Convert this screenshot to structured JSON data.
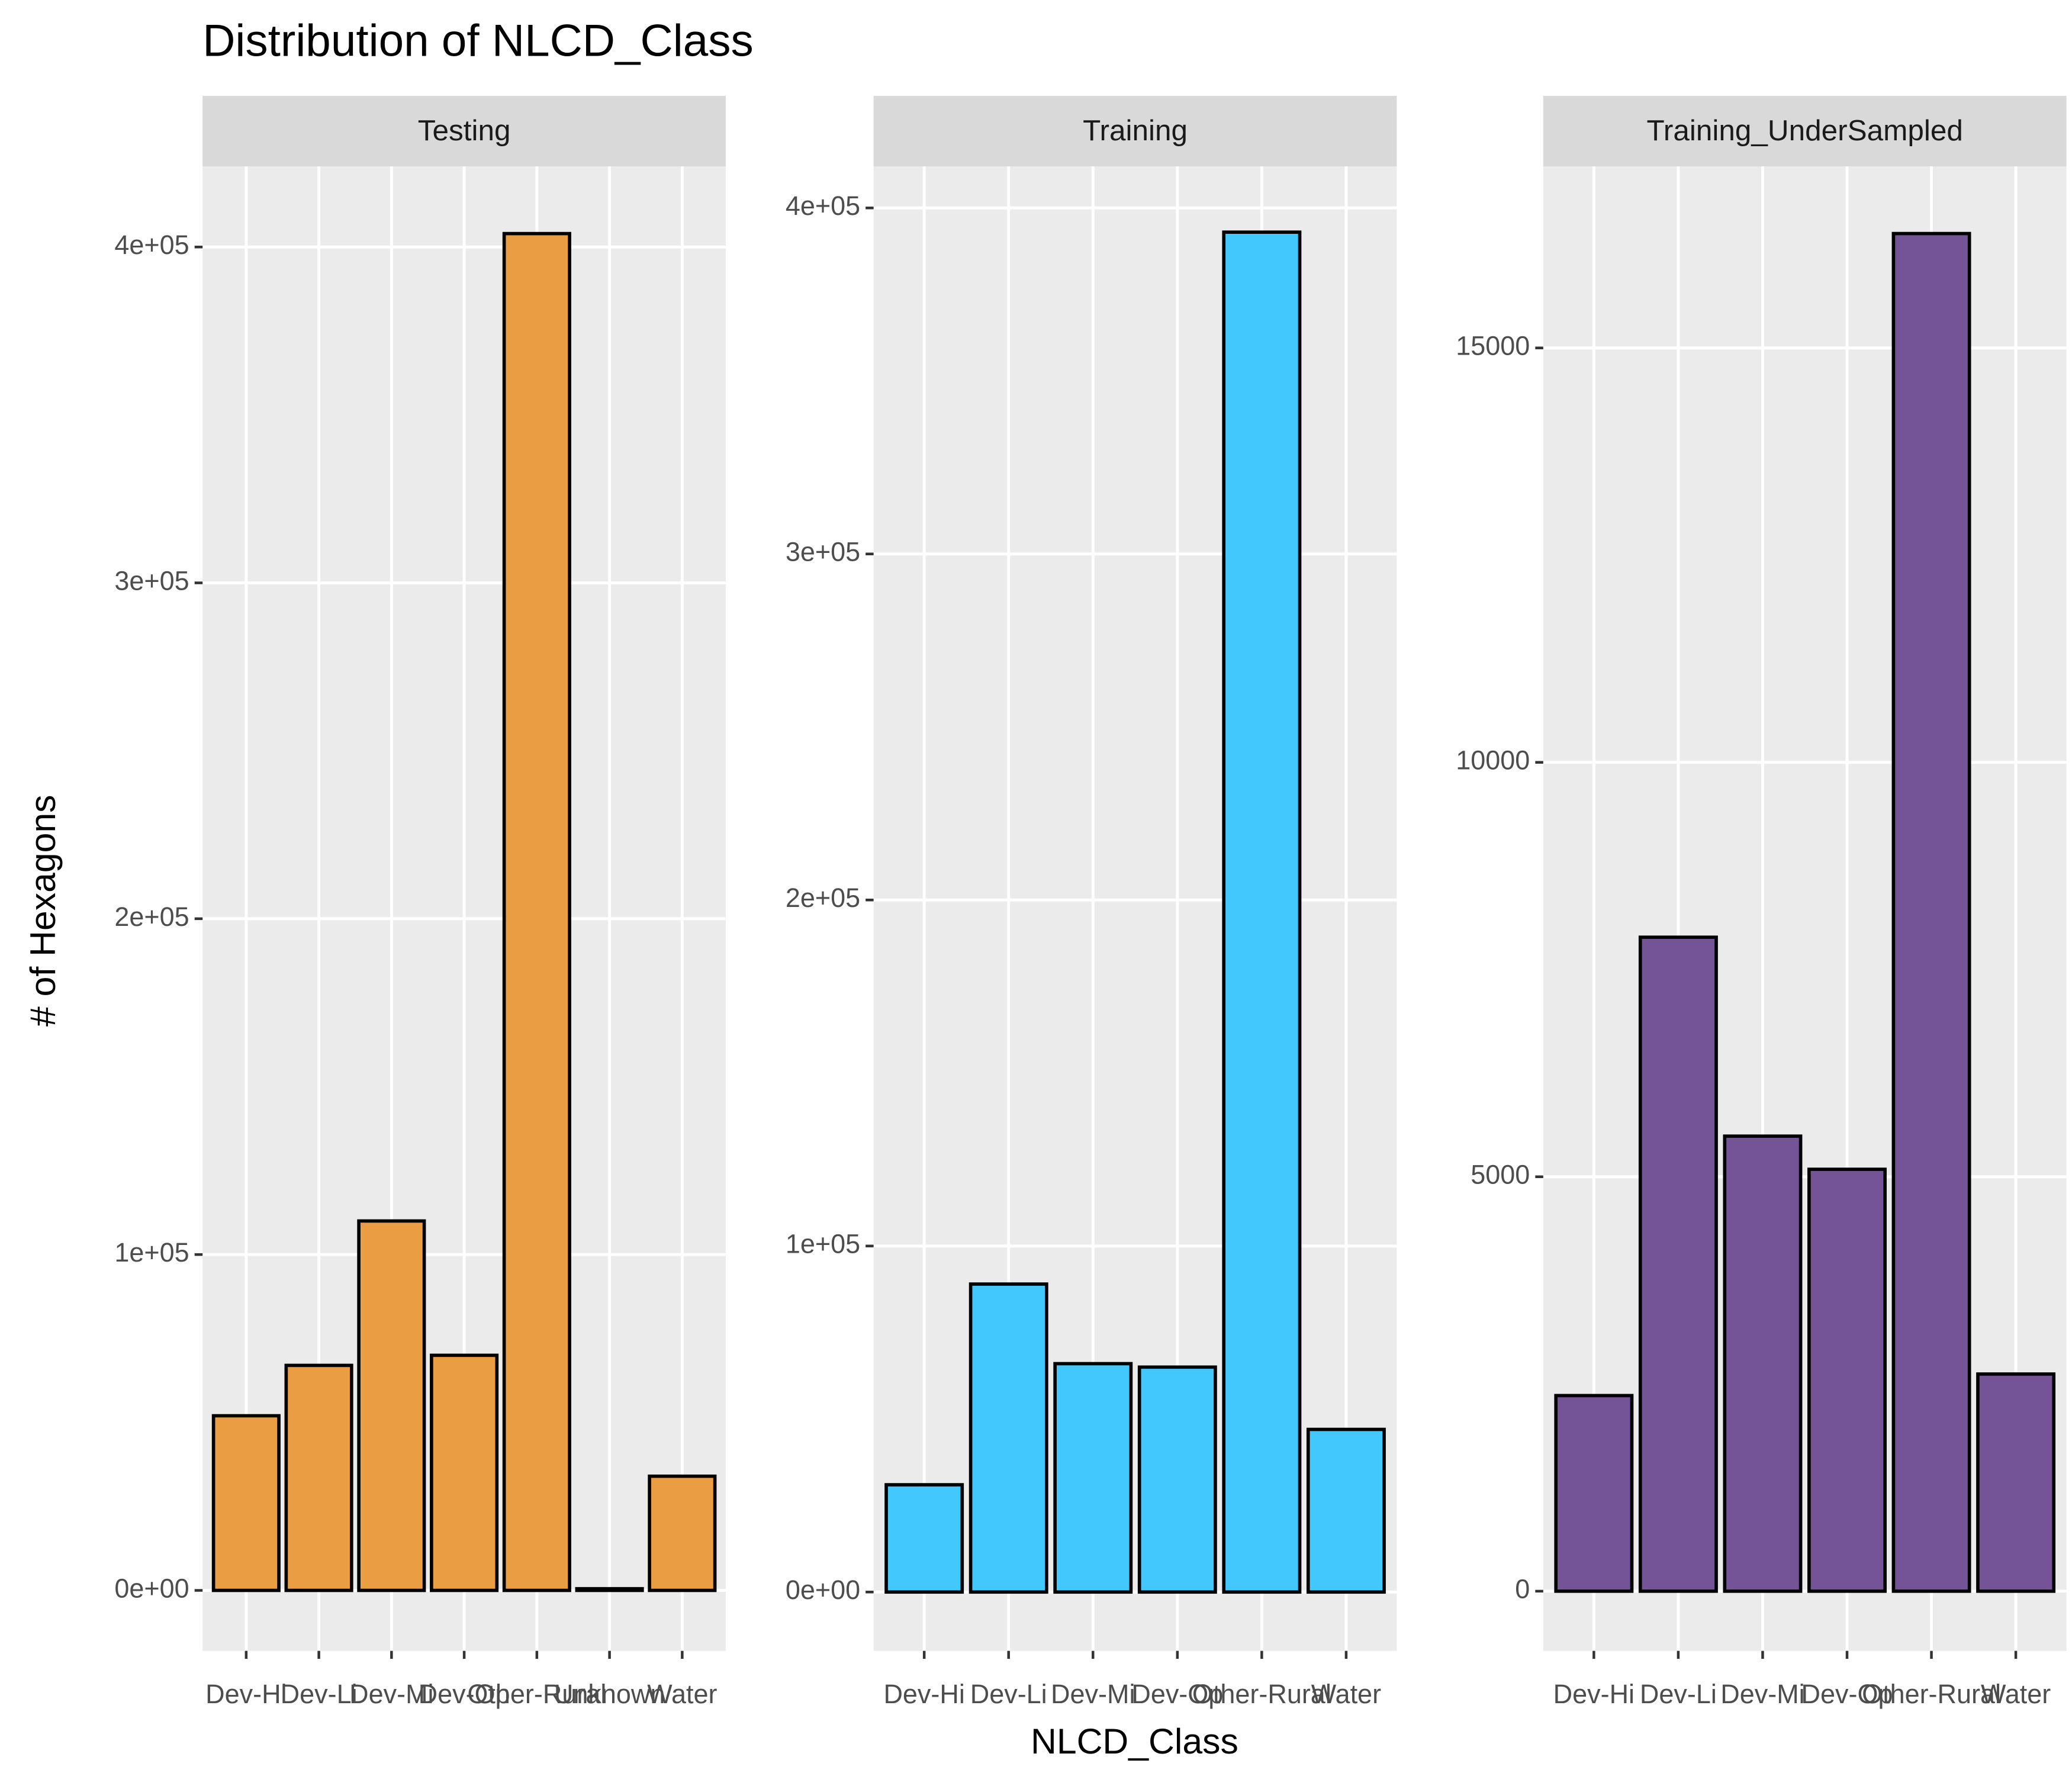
{
  "title": "Distribution of NLCD_Class",
  "x_label": "NLCD_Class",
  "y_label": "# of Hexagons",
  "chart_data": [
    {
      "type": "bar",
      "facet": "Testing",
      "categories": [
        "Dev-Hi",
        "Dev-Li",
        "Dev-Mi",
        "Dev-Op",
        "Other-Rural",
        "Unknown",
        "Water"
      ],
      "values": [
        52000,
        67000,
        110000,
        70000,
        404000,
        500,
        34000
      ],
      "color": "#EB9D43",
      "ylim": [
        -18000,
        424000
      ],
      "yticks": [
        {
          "value": 0,
          "label": "0e+00"
        },
        {
          "value": 100000,
          "label": "1e+05"
        },
        {
          "value": 200000,
          "label": "2e+05"
        },
        {
          "value": 300000,
          "label": "3e+05"
        },
        {
          "value": 400000,
          "label": "4e+05"
        }
      ],
      "grid": true
    },
    {
      "type": "bar",
      "facet": "Training",
      "categories": [
        "Dev-Hi",
        "Dev-Li",
        "Dev-Mi",
        "Dev-Op",
        "Other-Rural",
        "Water"
      ],
      "values": [
        31000,
        89000,
        66000,
        65000,
        393000,
        47000
      ],
      "color": "#42C8FC",
      "ylim": [
        -17000,
        412000
      ],
      "yticks": [
        {
          "value": 0,
          "label": "0e+00"
        },
        {
          "value": 100000,
          "label": "1e+05"
        },
        {
          "value": 200000,
          "label": "2e+05"
        },
        {
          "value": 300000,
          "label": "3e+05"
        },
        {
          "value": 400000,
          "label": "4e+05"
        }
      ],
      "grid": true
    },
    {
      "type": "bar",
      "facet": "Training_UnderSampled",
      "categories": [
        "Dev-Hi",
        "Dev-Li",
        "Dev-Mi",
        "Dev-Op",
        "Other-Rural",
        "Water"
      ],
      "values": [
        2360,
        7890,
        5490,
        5090,
        16380,
        2620
      ],
      "color": "#745396",
      "ylim": [
        -720,
        17190
      ],
      "yticks": [
        0,
        5000,
        10000,
        15000
      ],
      "grid": true
    }
  ]
}
